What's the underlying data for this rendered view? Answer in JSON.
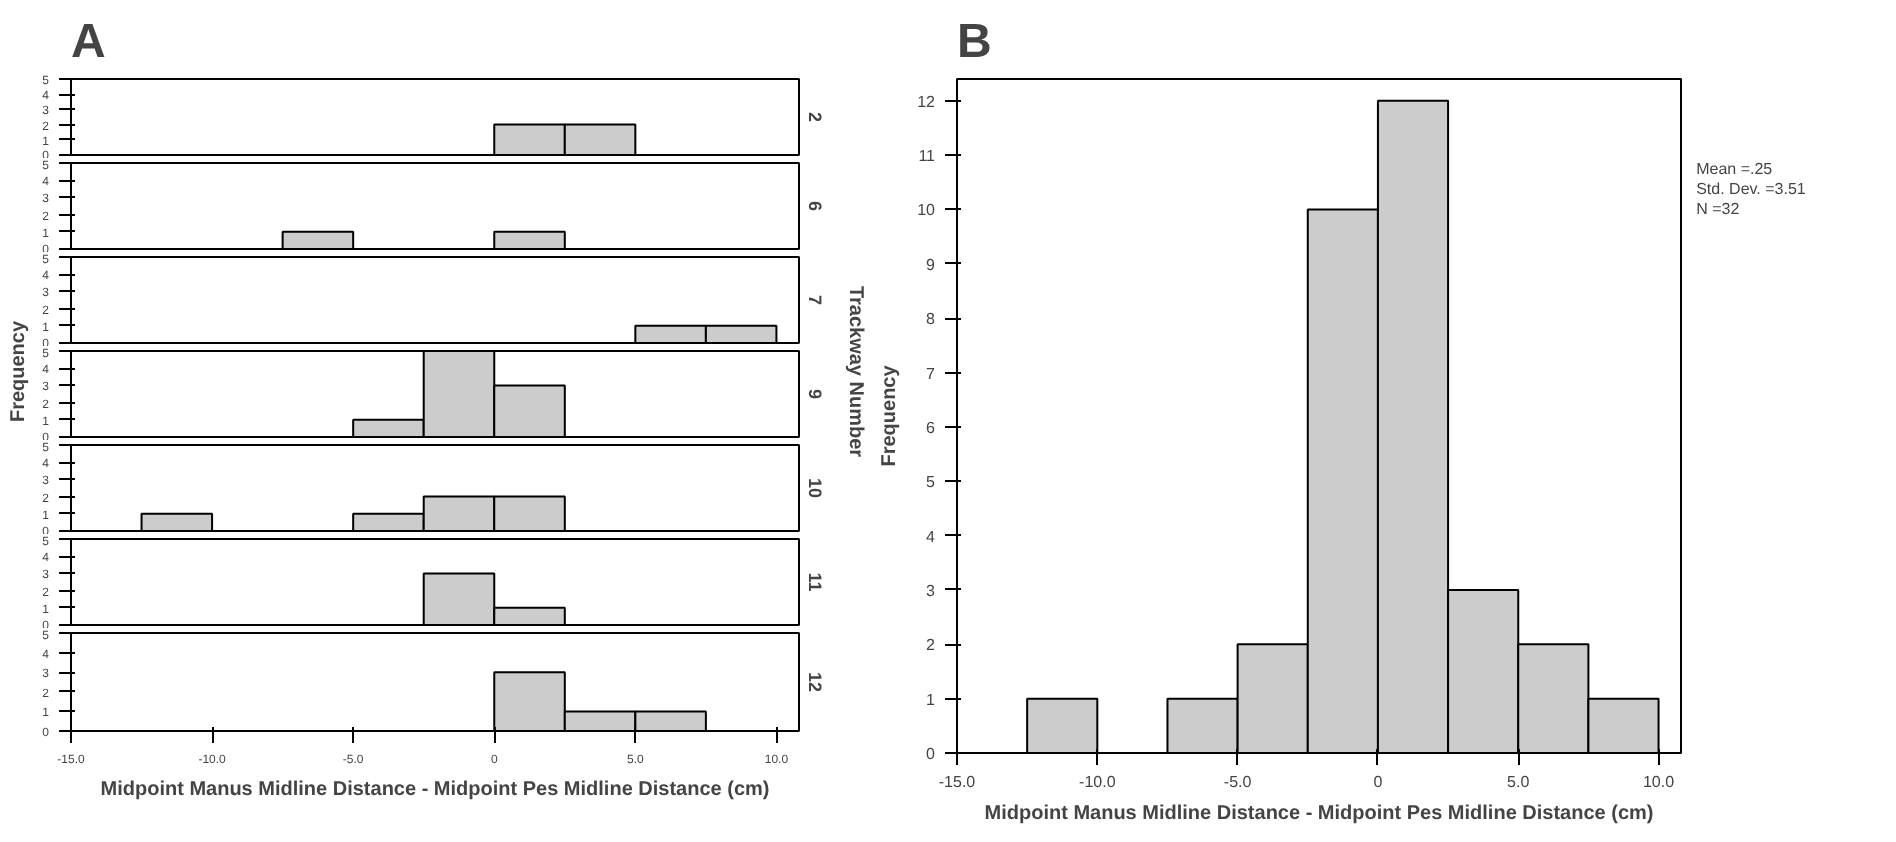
{
  "chart_data": [
    {
      "type": "histogram",
      "title": "A",
      "y2label": "2",
      "bins": [
        0,
        2.5,
        5
      ],
      "series": [
        {
          "color": "#cccccc",
          "values": [
            2,
            2
          ]
        }
      ],
      "xlim": [
        -15,
        10.8
      ],
      "ylim": [
        0,
        5
      ],
      "yticks": [
        0,
        1,
        2,
        3,
        4,
        5
      ],
      "tick_labels": "y"
    },
    {
      "type": "histogram",
      "y2label": "6",
      "bins": [
        -7.5,
        -5,
        -2.5,
        0,
        2.5
      ],
      "series": [
        {
          "color": "#cccccc",
          "values": [
            1,
            0,
            0,
            1
          ]
        }
      ],
      "xlim": [
        -15,
        10.8
      ],
      "ylim": [
        0,
        5
      ],
      "yticks": [
        0,
        1,
        2,
        3,
        4,
        5
      ],
      "tick_labels": "y"
    },
    {
      "type": "histogram",
      "y2label": "7",
      "bins": [
        5,
        7.5,
        10
      ],
      "series": [
        {
          "color": "#cccccc",
          "values": [
            1,
            1
          ]
        }
      ],
      "xlim": [
        -15,
        10.8
      ],
      "ylim": [
        0,
        5
      ],
      "yticks": [
        0,
        1,
        2,
        3,
        4,
        5
      ],
      "tick_labels": "y"
    },
    {
      "type": "histogram",
      "y2label": "9",
      "ylabel": "Frequency",
      "annotations": [
        "Trackway Number"
      ],
      "bins": [
        -5,
        -2.5,
        0,
        2.5
      ],
      "series": [
        {
          "color": "#cccccc",
          "values": [
            1,
            5,
            3
          ]
        }
      ],
      "xlim": [
        -15,
        10.8
      ],
      "ylim": [
        0,
        5
      ],
      "yticks": [
        0,
        1,
        2,
        3,
        4,
        5
      ],
      "tick_labels": "y"
    },
    {
      "type": "histogram",
      "y2label": "10",
      "bins": [
        -12.5,
        -10,
        -7.5,
        -5,
        -2.5,
        0,
        2.5
      ],
      "series": [
        {
          "color": "#cccccc",
          "values": [
            1,
            0,
            0,
            1,
            2,
            2
          ]
        }
      ],
      "xlim": [
        -15,
        10.8
      ],
      "ylim": [
        0,
        5
      ],
      "yticks": [
        0,
        1,
        2,
        3,
        4,
        5
      ],
      "tick_labels": "y"
    },
    {
      "type": "histogram",
      "y2label": "11",
      "bins": [
        -2.5,
        0,
        2.5
      ],
      "series": [
        {
          "color": "#cccccc",
          "values": [
            3,
            1
          ]
        }
      ],
      "xlim": [
        -15,
        10.8
      ],
      "ylim": [
        0,
        5
      ],
      "yticks": [
        0,
        1,
        2,
        3,
        4,
        5
      ],
      "tick_labels": "y"
    },
    {
      "type": "histogram",
      "y2label": "12",
      "xlabel": "Midpoint Manus Midline Distance - Midpoint Pes Midline Distance (cm)",
      "bins": [
        0,
        2.5,
        5,
        7.5
      ],
      "series": [
        {
          "color": "#cccccc",
          "values": [
            3,
            1,
            1
          ]
        }
      ],
      "xlim": [
        -15,
        10.8
      ],
      "xticks": [
        {
          "value": -15,
          "label": "-15.0"
        },
        {
          "value": -10,
          "label": "-10.0"
        },
        {
          "value": -5,
          "label": "-5.0"
        },
        0,
        {
          "value": 5,
          "label": "5.0"
        },
        {
          "value": 10,
          "label": "10.0"
        }
      ],
      "ylim": [
        0,
        5
      ],
      "yticks": [
        0,
        1,
        2,
        3,
        4,
        5
      ]
    },
    {
      "type": "histogram",
      "title": "B",
      "xlabel": "Midpoint Manus Midline Distance - Midpoint Pes Midline Distance (cm)",
      "ylabel": "Frequency",
      "annotations": [
        "Mean =.25",
        "Std. Dev. =3.51",
        "N =32"
      ],
      "bins": [
        -12.5,
        -10,
        -7.5,
        -5,
        -2.5,
        0,
        2.5,
        5,
        7.5,
        10
      ],
      "series": [
        {
          "color": "#cccccc",
          "values": [
            1,
            0,
            1,
            2,
            10,
            12,
            3,
            2,
            1
          ]
        }
      ],
      "xlim": [
        -15,
        10.8
      ],
      "xticks": [
        {
          "value": -15,
          "label": "-15.0"
        },
        {
          "value": -10,
          "label": "-10.0"
        },
        {
          "value": -5,
          "label": "-5.0"
        },
        0,
        {
          "value": 5,
          "label": "5.0"
        },
        {
          "value": 10,
          "label": "10.0"
        }
      ],
      "ylim": [
        0,
        12.4
      ],
      "yticks": [
        0,
        1,
        2,
        3,
        4,
        5,
        6,
        7,
        8,
        9,
        10,
        11,
        12
      ]
    }
  ]
}
